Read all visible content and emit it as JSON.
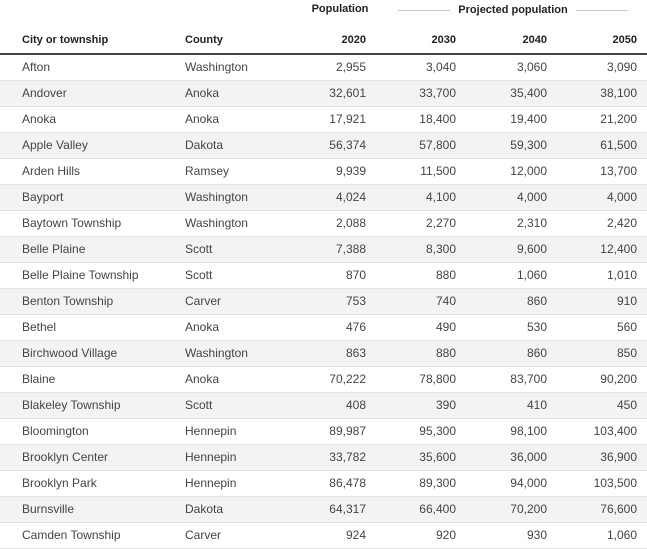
{
  "headers": {
    "population_group": "Population",
    "projected_group": "Projected population",
    "city": "City or township",
    "county": "County",
    "y2020": "2020",
    "y2030": "2030",
    "y2040": "2040",
    "y2050": "2050"
  },
  "rows": [
    {
      "city": "Afton",
      "county": "Washington",
      "y2020": "2,955",
      "y2030": "3,040",
      "y2040": "3,060",
      "y2050": "3,090"
    },
    {
      "city": "Andover",
      "county": "Anoka",
      "y2020": "32,601",
      "y2030": "33,700",
      "y2040": "35,400",
      "y2050": "38,100"
    },
    {
      "city": "Anoka",
      "county": "Anoka",
      "y2020": "17,921",
      "y2030": "18,400",
      "y2040": "19,400",
      "y2050": "21,200"
    },
    {
      "city": "Apple Valley",
      "county": "Dakota",
      "y2020": "56,374",
      "y2030": "57,800",
      "y2040": "59,300",
      "y2050": "61,500"
    },
    {
      "city": "Arden Hills",
      "county": "Ramsey",
      "y2020": "9,939",
      "y2030": "11,500",
      "y2040": "12,000",
      "y2050": "13,700"
    },
    {
      "city": "Bayport",
      "county": "Washington",
      "y2020": "4,024",
      "y2030": "4,100",
      "y2040": "4,000",
      "y2050": "4,000"
    },
    {
      "city": "Baytown Township",
      "county": "Washington",
      "y2020": "2,088",
      "y2030": "2,270",
      "y2040": "2,310",
      "y2050": "2,420"
    },
    {
      "city": "Belle Plaine",
      "county": "Scott",
      "y2020": "7,388",
      "y2030": "8,300",
      "y2040": "9,600",
      "y2050": "12,400"
    },
    {
      "city": "Belle Plaine Township",
      "county": "Scott",
      "y2020": "870",
      "y2030": "880",
      "y2040": "1,060",
      "y2050": "1,010"
    },
    {
      "city": "Benton Township",
      "county": "Carver",
      "y2020": "753",
      "y2030": "740",
      "y2040": "860",
      "y2050": "910"
    },
    {
      "city": "Bethel",
      "county": "Anoka",
      "y2020": "476",
      "y2030": "490",
      "y2040": "530",
      "y2050": "560"
    },
    {
      "city": "Birchwood Village",
      "county": "Washington",
      "y2020": "863",
      "y2030": "880",
      "y2040": "860",
      "y2050": "850"
    },
    {
      "city": "Blaine",
      "county": "Anoka",
      "y2020": "70,222",
      "y2030": "78,800",
      "y2040": "83,700",
      "y2050": "90,200"
    },
    {
      "city": "Blakeley Township",
      "county": "Scott",
      "y2020": "408",
      "y2030": "390",
      "y2040": "410",
      "y2050": "450"
    },
    {
      "city": "Bloomington",
      "county": "Hennepin",
      "y2020": "89,987",
      "y2030": "95,300",
      "y2040": "98,100",
      "y2050": "103,400"
    },
    {
      "city": "Brooklyn Center",
      "county": "Hennepin",
      "y2020": "33,782",
      "y2030": "35,600",
      "y2040": "36,000",
      "y2050": "36,900"
    },
    {
      "city": "Brooklyn Park",
      "county": "Hennepin",
      "y2020": "86,478",
      "y2030": "89,300",
      "y2040": "94,000",
      "y2050": "103,500"
    },
    {
      "city": "Burnsville",
      "county": "Dakota",
      "y2020": "64,317",
      "y2030": "66,400",
      "y2040": "70,200",
      "y2050": "76,600"
    },
    {
      "city": "Camden Township",
      "county": "Carver",
      "y2020": "924",
      "y2030": "920",
      "y2040": "930",
      "y2050": "1,060"
    }
  ]
}
